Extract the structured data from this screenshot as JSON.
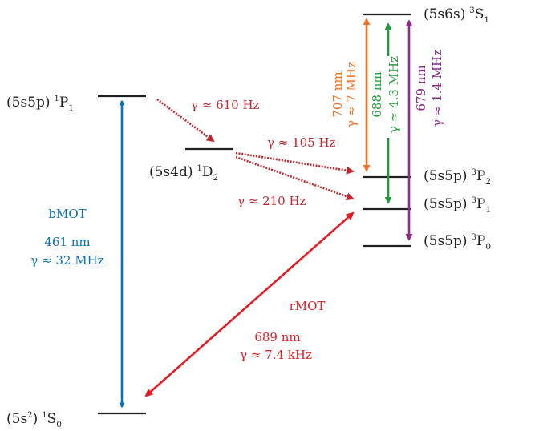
{
  "colors": {
    "level": "#231f20",
    "blue": "#0b72b5",
    "red": "#e31d24",
    "darkred": "#c1272d",
    "orange": "#f36f21",
    "green": "#229a3b",
    "purple": "#8b2a8b"
  },
  "levels": {
    "s0": {
      "config": "(5s",
      "sup": "2",
      "close": ")",
      "mult": "1",
      "term": "S",
      "j": "0"
    },
    "p1_singlet": {
      "config": "(5s5p)",
      "mult": "1",
      "term": "P",
      "j": "1"
    },
    "d2": {
      "config": "(5s4d)",
      "mult": "1",
      "term": "D",
      "j": "2"
    },
    "s1_triplet": {
      "config": "(5s6s)",
      "mult": "3",
      "term": "S",
      "j": "1"
    },
    "p2_triplet": {
      "config": "(5s5p)",
      "mult": "3",
      "term": "P",
      "j": "2"
    },
    "p1_triplet": {
      "config": "(5s5p)",
      "mult": "3",
      "term": "P",
      "j": "1"
    },
    "p0_triplet": {
      "config": "(5s5p)",
      "mult": "3",
      "term": "P",
      "j": "0"
    }
  },
  "transitions": {
    "bmot": {
      "name": "bMOT",
      "wavelength": "461 nm",
      "linewidth": "γ ≈ 32 MHz"
    },
    "rmot": {
      "name": "rMOT",
      "wavelength": "689 nm",
      "linewidth": "γ ≈ 7.4 kHz"
    },
    "decay_p1_d2": {
      "linewidth": "γ ≈ 610 Hz"
    },
    "decay_d2_p2": {
      "linewidth": "γ ≈ 105 Hz"
    },
    "decay_d2_p1": {
      "linewidth": "γ ≈ 210 Hz"
    },
    "t707": {
      "wavelength": "707 nm",
      "linewidth": "γ ≈ 7 MHz"
    },
    "t688": {
      "wavelength": "688 nm",
      "linewidth": "γ ≈ 4.3 MHz"
    },
    "t679": {
      "wavelength": "679 nm",
      "linewidth": "γ ≈ 1.4 MHz"
    }
  }
}
